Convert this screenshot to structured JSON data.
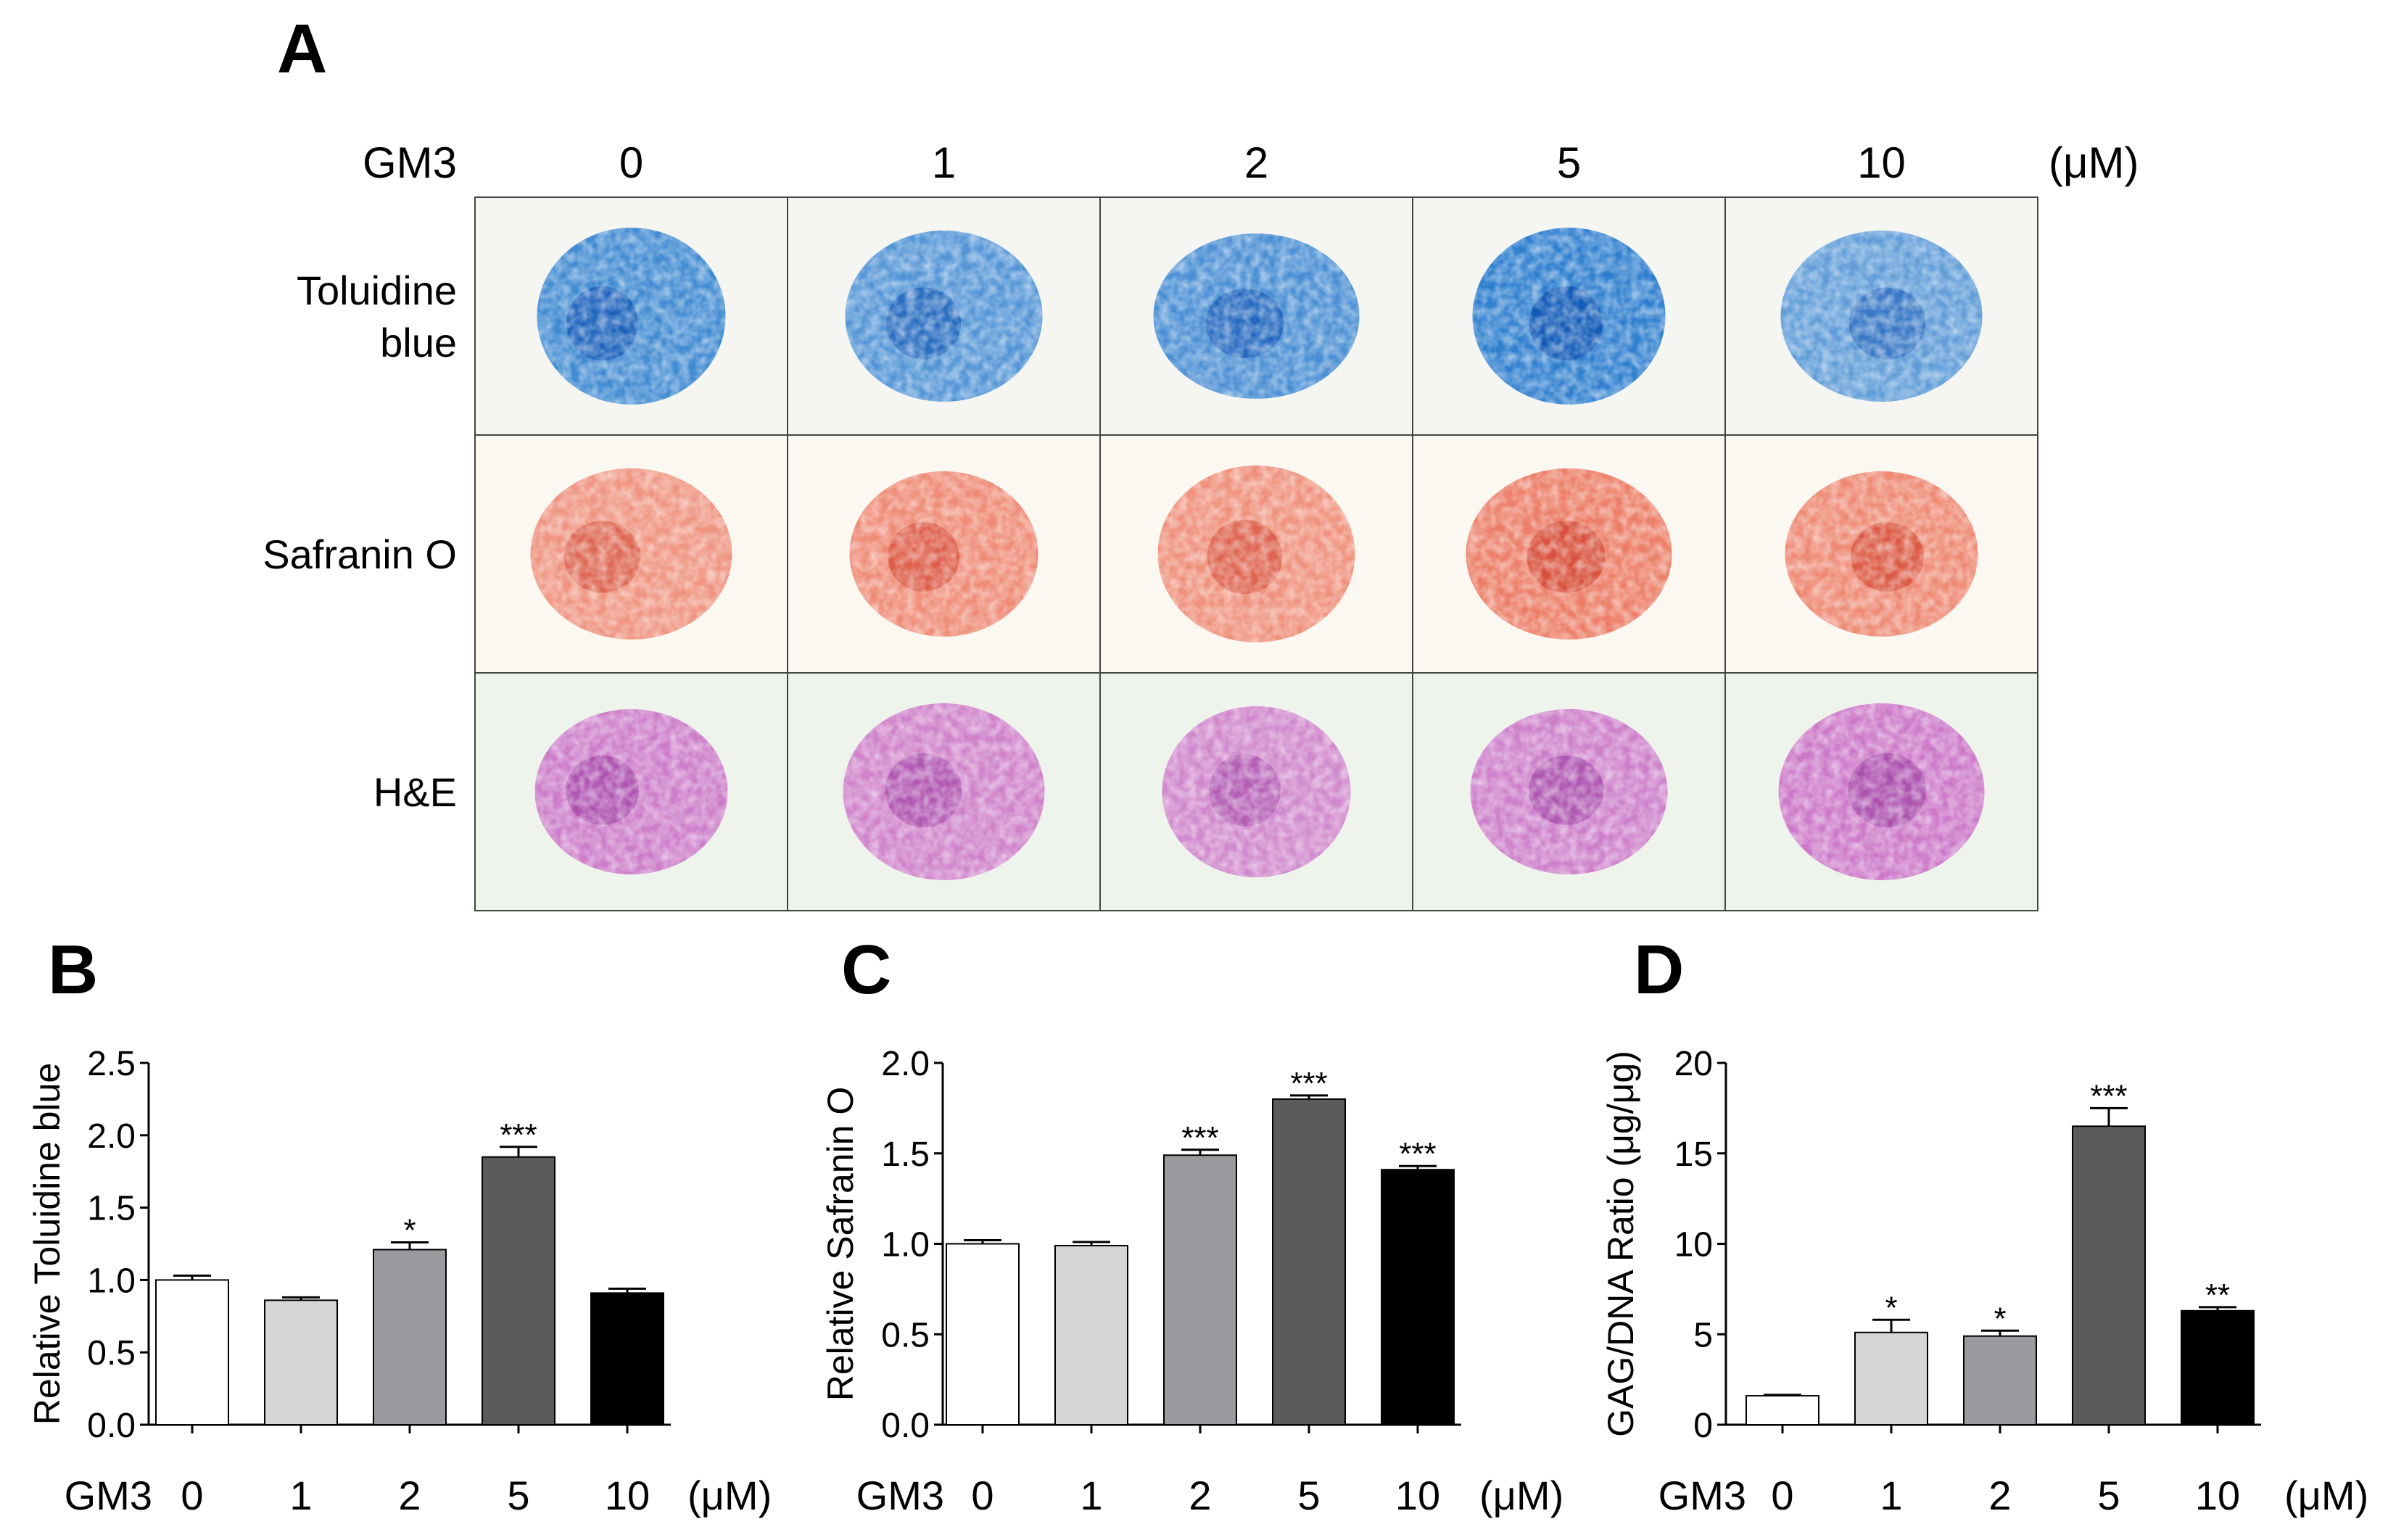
{
  "panel_labels": {
    "a": "A",
    "b": "B",
    "c": "C",
    "d": "D"
  },
  "panel_a": {
    "treatment_label": "GM3",
    "unit": "(μM)",
    "doses": [
      "0",
      "1",
      "2",
      "5",
      "10"
    ],
    "rows": [
      {
        "label_lines": [
          "Toluidine",
          "blue"
        ],
        "color": "#2f7fcf",
        "dark": "#0a4fb0",
        "bg": "#f5f6f2"
      },
      {
        "label_lines": [
          "Safranin O"
        ],
        "color": "#ec7a62",
        "dark": "#d0402a",
        "bg": "#fbf8f2"
      },
      {
        "label_lines": [
          "H&E"
        ],
        "color": "#c86cc4",
        "dark": "#9a3aa0",
        "bg": "#eef4ec"
      }
    ],
    "intensity": [
      [
        0.8,
        0.6,
        0.7,
        1.0,
        0.45
      ],
      [
        0.55,
        0.7,
        0.6,
        0.95,
        0.75
      ],
      [
        0.75,
        0.65,
        0.55,
        0.7,
        0.8
      ]
    ]
  },
  "chart_data": [
    {
      "type": "bar",
      "panel": "B",
      "title": "",
      "xlabel": "GM3",
      "x_unit": "(μM)",
      "ylabel": "Relative Toluidine blue",
      "categories": [
        "0",
        "1",
        "2",
        "5",
        "10"
      ],
      "values": [
        1.0,
        0.86,
        1.21,
        1.85,
        0.91
      ],
      "errors": [
        0.03,
        0.02,
        0.05,
        0.07,
        0.03
      ],
      "significance": [
        "",
        "",
        "*",
        "***",
        ""
      ],
      "ylim": [
        0,
        2.5
      ],
      "yticks": [
        "0.0",
        "0.5",
        "1.0",
        "1.5",
        "2.0",
        "2.5"
      ],
      "bar_colors": [
        "#ffffff",
        "#d6d6d6",
        "#9a9b9f",
        "#5b5b5b",
        "#000000"
      ]
    },
    {
      "type": "bar",
      "panel": "C",
      "title": "",
      "xlabel": "GM3",
      "x_unit": "(μM)",
      "ylabel": "Relative Safranin O",
      "categories": [
        "0",
        "1",
        "2",
        "5",
        "10"
      ],
      "values": [
        1.0,
        0.99,
        1.49,
        1.8,
        1.41
      ],
      "errors": [
        0.02,
        0.02,
        0.03,
        0.02,
        0.02
      ],
      "significance": [
        "",
        "",
        "***",
        "***",
        "***"
      ],
      "ylim": [
        0,
        2.0
      ],
      "yticks": [
        "0.0",
        "0.5",
        "1.0",
        "1.5",
        "2.0"
      ],
      "bar_colors": [
        "#ffffff",
        "#d6d6d6",
        "#9a9b9f",
        "#5b5b5b",
        "#000000"
      ]
    },
    {
      "type": "bar",
      "panel": "D",
      "title": "",
      "xlabel": "GM3",
      "x_unit": "(μM)",
      "ylabel": "GAG/DNA Ratio (μg/μg)",
      "categories": [
        "0",
        "1",
        "2",
        "5",
        "10"
      ],
      "values": [
        1.6,
        5.1,
        4.9,
        16.5,
        6.3
      ],
      "errors": [
        0.05,
        0.7,
        0.3,
        1.0,
        0.2
      ],
      "significance": [
        "",
        "*",
        "*",
        "***",
        "**"
      ],
      "ylim": [
        0,
        20
      ],
      "yticks": [
        "0",
        "5",
        "10",
        "15",
        "20"
      ],
      "bar_colors": [
        "#ffffff",
        "#d6d6d6",
        "#9a9b9f",
        "#5b5b5b",
        "#000000"
      ]
    }
  ]
}
